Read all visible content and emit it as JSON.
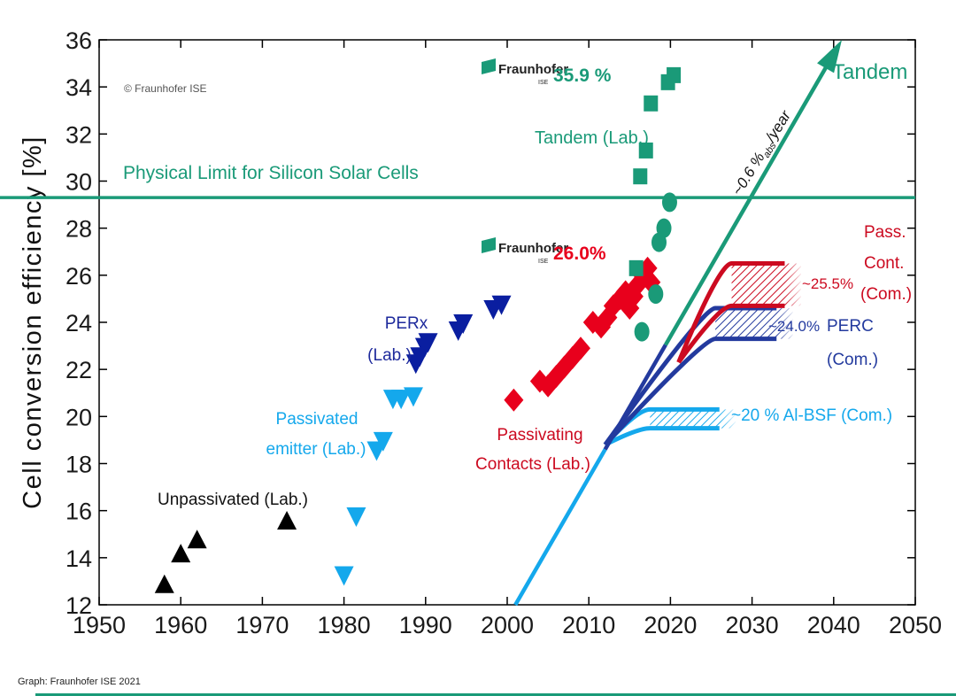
{
  "colors": {
    "tandem": "#1a9a78",
    "pass_contacts": "#e8001c",
    "pass_contacts_dark": "#cc0a20",
    "perx": "#0a1ea0",
    "perc_line": "#233a9e",
    "passivated_emitter": "#14a8ec",
    "unpassivated": "#000000",
    "axis": "#000000"
  },
  "chart_data": {
    "type": "scatter",
    "title": "",
    "ylabel": "Cell conversion efficiency [%]",
    "xlabel": "",
    "xlim": [
      1950,
      2050
    ],
    "ylim": [
      12,
      36
    ],
    "x_ticks": [
      1950,
      1960,
      1970,
      1980,
      1990,
      2000,
      2010,
      2020,
      2030,
      2040,
      2050
    ],
    "y_ticks": [
      12,
      14,
      16,
      18,
      20,
      22,
      24,
      26,
      28,
      30,
      32,
      34,
      36
    ],
    "series": [
      {
        "name": "Unpassivated (Lab.)",
        "marker": "triangle-up",
        "color_key": "unpassivated",
        "points": [
          [
            1958,
            12.8
          ],
          [
            1960,
            14.1
          ],
          [
            1962,
            14.7
          ],
          [
            1973,
            15.5
          ]
        ]
      },
      {
        "name": "Passivated emitter (Lab.)",
        "marker": "triangle-down",
        "color_key": "passivated_emitter",
        "points": [
          [
            1980,
            13.3
          ],
          [
            1981.5,
            15.8
          ],
          [
            1984,
            18.6
          ],
          [
            1984.8,
            19.0
          ],
          [
            1986,
            20.8
          ],
          [
            1987,
            20.8
          ],
          [
            1988.5,
            20.9
          ]
        ]
      },
      {
        "name": "PERx (Lab.)",
        "marker": "triangle-down",
        "color_key": "perx",
        "points": [
          [
            1988.8,
            22.3
          ],
          [
            1989.3,
            22.6
          ],
          [
            1989.9,
            23.0
          ],
          [
            1990.3,
            23.2
          ],
          [
            1994,
            23.7
          ],
          [
            1994.6,
            24.0
          ],
          [
            1998.3,
            24.6
          ],
          [
            1999.3,
            24.8
          ]
        ]
      },
      {
        "name": "Passivating Contacts (Lab.)",
        "marker": "diamond",
        "color_key": "pass_contacts",
        "points": [
          [
            2000.8,
            20.7
          ],
          [
            2004,
            21.5
          ],
          [
            2005,
            21.3
          ],
          [
            2006,
            21.7
          ],
          [
            2007,
            22.1
          ],
          [
            2008,
            22.5
          ],
          [
            2009,
            22.9
          ],
          [
            2010.5,
            24.0
          ],
          [
            2011.5,
            23.8
          ],
          [
            2012.3,
            24.2
          ],
          [
            2013,
            24.7
          ],
          [
            2013.8,
            25.0
          ],
          [
            2014.5,
            25.3
          ],
          [
            2015,
            24.6
          ],
          [
            2015.5,
            25.1
          ],
          [
            2016,
            25.6
          ],
          [
            2016.6,
            26.0
          ],
          [
            2017.2,
            26.3
          ],
          [
            2017.6,
            25.7
          ]
        ]
      },
      {
        "name": "Tandem (Lab.) squares",
        "marker": "square",
        "color_key": "tandem",
        "points": [
          [
            2015.8,
            26.3
          ],
          [
            2016.3,
            30.2
          ],
          [
            2017,
            31.3
          ],
          [
            2017.6,
            33.3
          ],
          [
            2019.7,
            34.2
          ],
          [
            2020.4,
            34.5
          ]
        ]
      },
      {
        "name": "Tandem (Lab.) circles",
        "marker": "circle",
        "color_key": "tandem",
        "points": [
          [
            2016.5,
            23.6
          ],
          [
            2018.2,
            25.2
          ],
          [
            2018.6,
            27.4
          ],
          [
            2019.2,
            28.0
          ],
          [
            2019.9,
            29.1
          ]
        ]
      }
    ],
    "limit_line": {
      "label": "Physical Limit for Silicon Solar Cells",
      "value": 29.3
    },
    "trend_line": {
      "label": "Tandem",
      "slope_label": "~0.6 %",
      "slope_sub": "abs",
      "slope_unit": "/year",
      "from": [
        2001,
        12
      ],
      "to": [
        2041,
        36
      ]
    },
    "commercial": [
      {
        "name": "Al-BSF",
        "label": "~20 % Al-BSF (Com.)",
        "color_key": "passivated_emitter",
        "start": [
          2012,
          18.8
        ],
        "bend_x": 2016,
        "lower": 19.5,
        "upper": 20.3,
        "hatch_end": 2026,
        "fade_end": 2028
      },
      {
        "name": "PERC",
        "label_value": "~24.0%",
        "label_name": "PERC",
        "label_sub": "(Com.)",
        "color_key": "perx",
        "start": [
          2012,
          18.8
        ],
        "bend_x": 2024,
        "lower": 23.3,
        "upper": 24.6,
        "hatch_end": 2033,
        "fade_end": 2035
      },
      {
        "name": "Passivating Contacts Commercial",
        "label_value": "~25.5%",
        "label_lines": [
          "Pass.",
          "Cont.",
          "(Com.)"
        ],
        "color_key": "pass_contacts_dark",
        "start": [
          2021,
          22.3
        ],
        "bend_x": 2026,
        "lower": 24.7,
        "upper": 26.5,
        "hatch_end": 2034,
        "fade_end": 2036
      }
    ],
    "annotations": {
      "unpassivated": "Unpassivated (Lab.)",
      "passivated_emitter": [
        "Passivated",
        "emitter (Lab.)"
      ],
      "perx": [
        "PERx",
        "(Lab.)"
      ],
      "passivating_contacts": [
        "Passivating",
        "Contacts (Lab.)"
      ],
      "tandem_lab": "Tandem (Lab.)",
      "fraunhofer_name": "Fraunhofer",
      "fraunhofer_sub": "ISE",
      "record_tandem": "35.9 %",
      "record_si": "26.0%",
      "copyright": "© Fraunhofer ISE"
    }
  },
  "footer": {
    "credit": "Graph: Fraunhofer ISE 2021"
  }
}
